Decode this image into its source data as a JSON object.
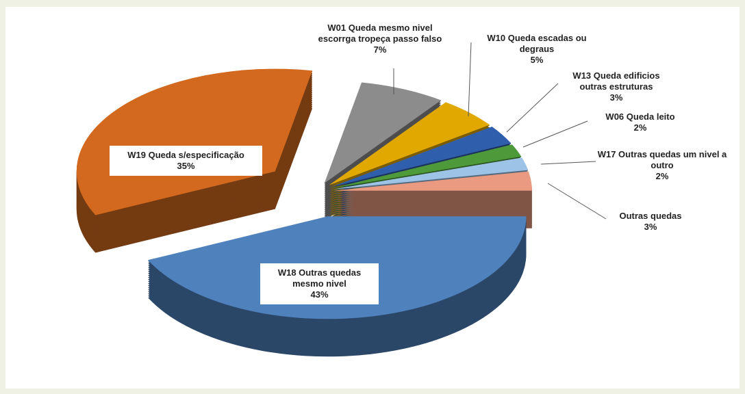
{
  "chart_data": {
    "type": "pie3d",
    "categories": [
      "W18   Outras quedas mesmo nivel",
      "W19   Queda s/especificação",
      "W01   Queda mesmo nivel escorrga  tropeça passo falso",
      "W10   Queda escadas ou degraus",
      "W13   Queda  edificios outras  estruturas",
      "W06   Queda   leito",
      "W17   Outras  quedas um nivel a outro",
      "Outras quedas"
    ],
    "values": [
      43,
      35,
      7,
      5,
      3,
      2,
      2,
      3
    ],
    "value_labels": [
      "43%",
      "35%",
      "7%",
      "5%",
      "3%",
      "2%",
      "2%",
      "3%"
    ],
    "colors": [
      "#4f81bd",
      "#d2691e",
      "#8c8c8c",
      "#e0a800",
      "#2f5fac",
      "#4e9a3a",
      "#9dc3e6",
      "#e99a80"
    ]
  }
}
